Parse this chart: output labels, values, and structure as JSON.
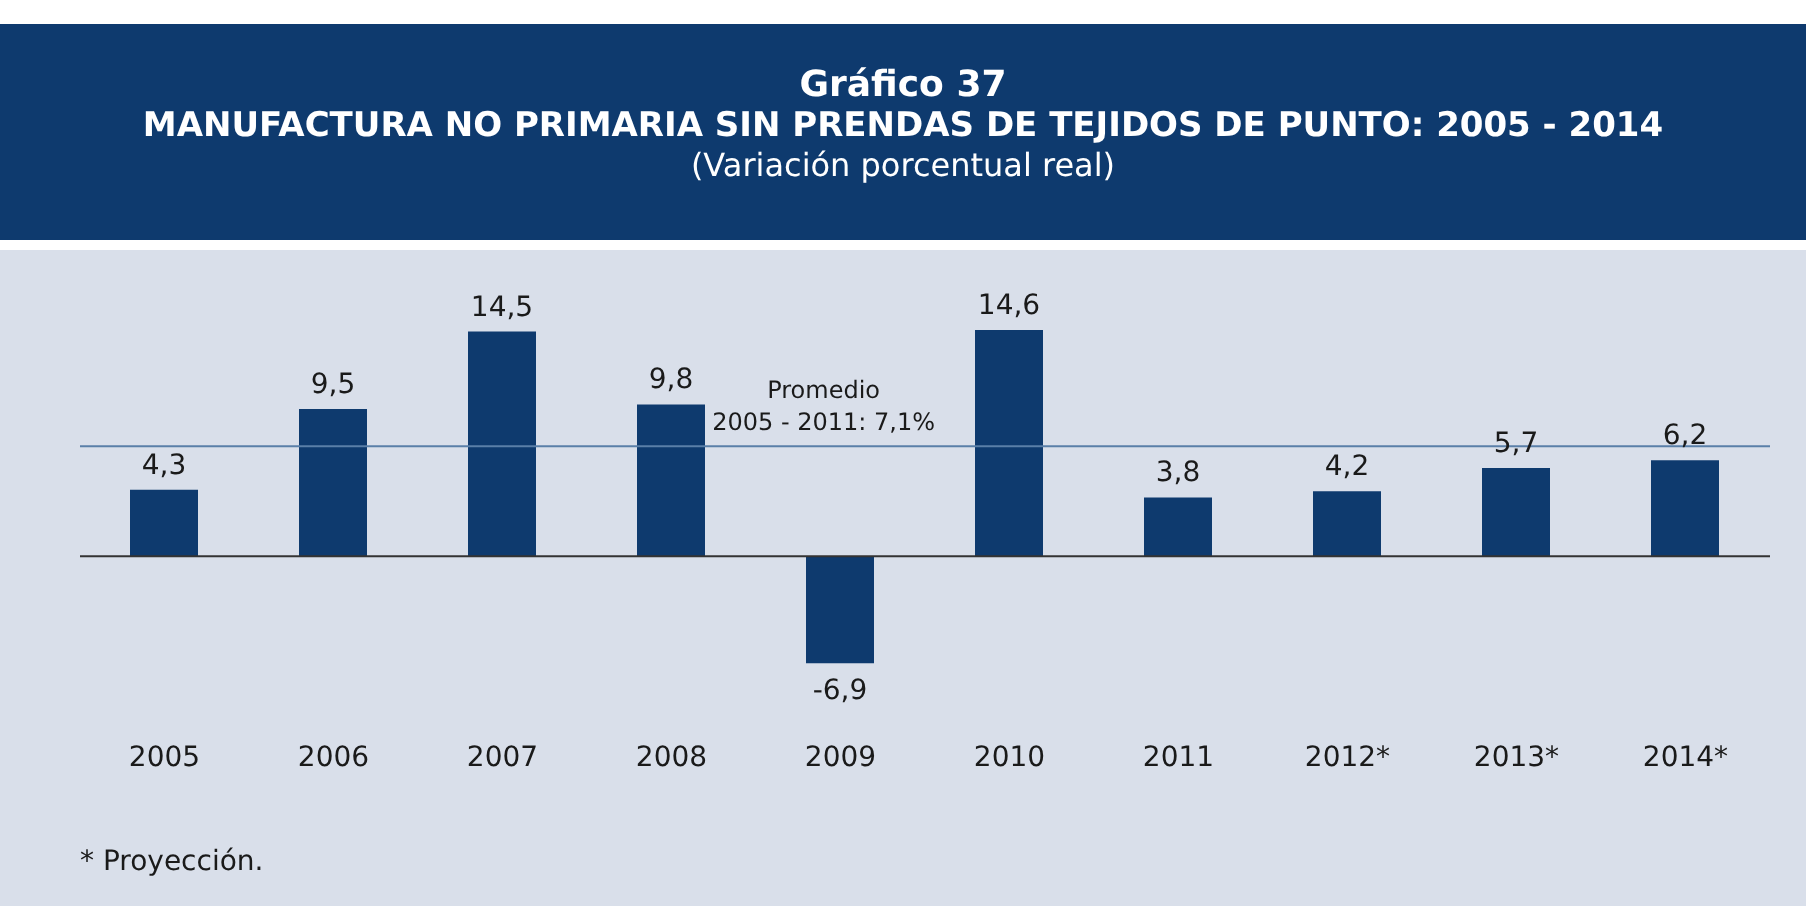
{
  "chart_data": {
    "type": "bar",
    "title": "Gráfico 37\nMANUFACTURA NO PRIMARIA SIN PRENDAS DE TEJIDOS DE PUNTO: 2005 - 2014",
    "subtitle": "(Variación porcentual real)",
    "categories": [
      "2005",
      "2006",
      "2007",
      "2008",
      "2009",
      "2010",
      "2011",
      "2012*",
      "2013*",
      "2014*"
    ],
    "values": [
      4.3,
      9.5,
      14.5,
      9.8,
      -6.9,
      14.6,
      3.8,
      4.2,
      5.7,
      6.2
    ],
    "value_labels": [
      "4,3",
      "9,5",
      "14,5",
      "9,8",
      "-6,9",
      "14,6",
      "3,8",
      "4,2",
      "5,7",
      "6,2"
    ],
    "color": "#0e3a6e",
    "ref_lines": [
      {
        "axis": "y",
        "value": 7.1,
        "label": "Promedio\n2005 - 2011: 7,1%",
        "color": "#5a7fa8"
      }
    ],
    "annotations": [
      "* Proyección."
    ]
  }
}
